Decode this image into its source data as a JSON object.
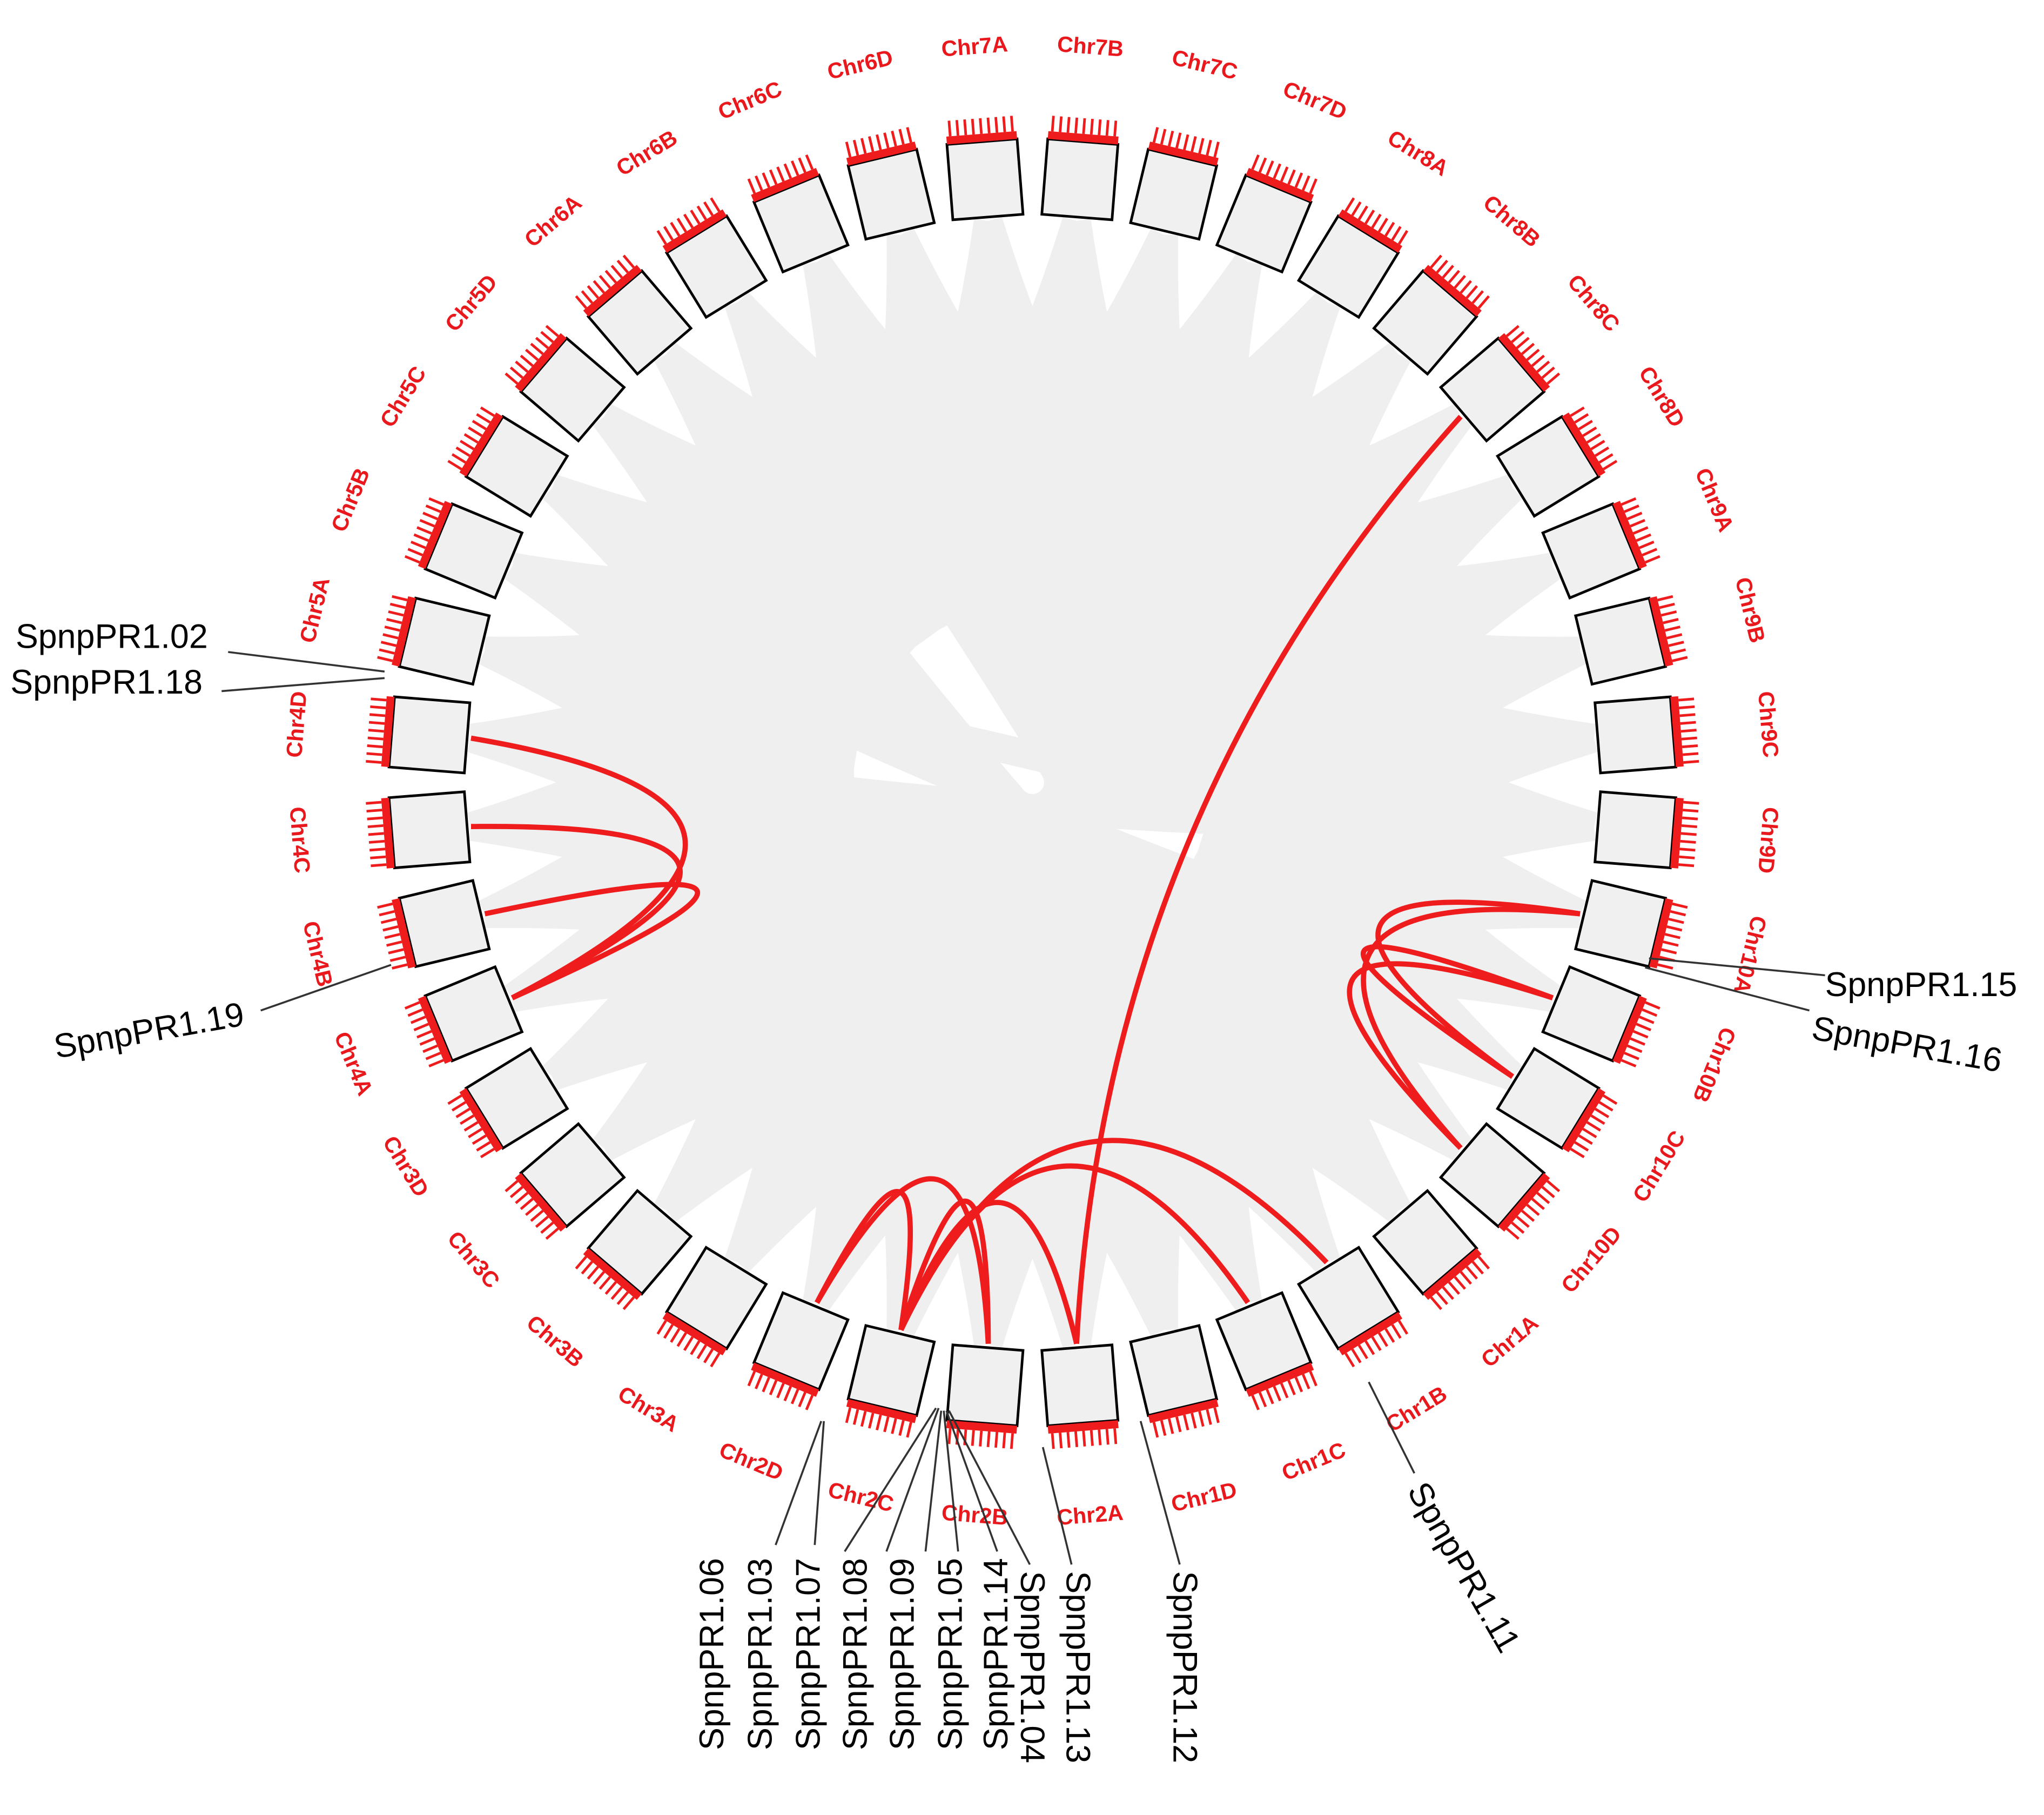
{
  "chromosomes": [
    "Chr1A",
    "Chr1B",
    "Chr1C",
    "Chr1D",
    "Chr2A",
    "Chr2B",
    "Chr2C",
    "Chr2D",
    "Chr3A",
    "Chr3B",
    "Chr3C",
    "Chr3D",
    "Chr4A",
    "Chr4B",
    "Chr4C",
    "Chr4D",
    "Chr5A",
    "Chr5B",
    "Chr5C",
    "Chr5D",
    "Chr6A",
    "Chr6B",
    "Chr6C",
    "Chr6D",
    "Chr7A",
    "Chr7B",
    "Chr7C",
    "Chr7D",
    "Chr8A",
    "Chr8B",
    "Chr8C",
    "Chr8D",
    "Chr9A",
    "Chr9B",
    "Chr9C",
    "Chr9D",
    "Chr10A",
    "Chr10B",
    "Chr10C",
    "Chr10D"
  ],
  "genes": [
    "SpnpPR1.02",
    "SpnpPR1.18",
    "SpnpPR1.19",
    "SpnpPR1.15",
    "SpnpPR1.16",
    "SpnpPR1.11",
    "SpnpPR1.12",
    "SpnpPR1.06",
    "SpnpPR1.03",
    "SpnpPR1.07",
    "SpnpPR1.08",
    "SpnpPR1.09",
    "SpnpPR1.05",
    "SpnpPR1.14",
    "SpnpPR1.04",
    "SpnpPR1.13"
  ]
}
